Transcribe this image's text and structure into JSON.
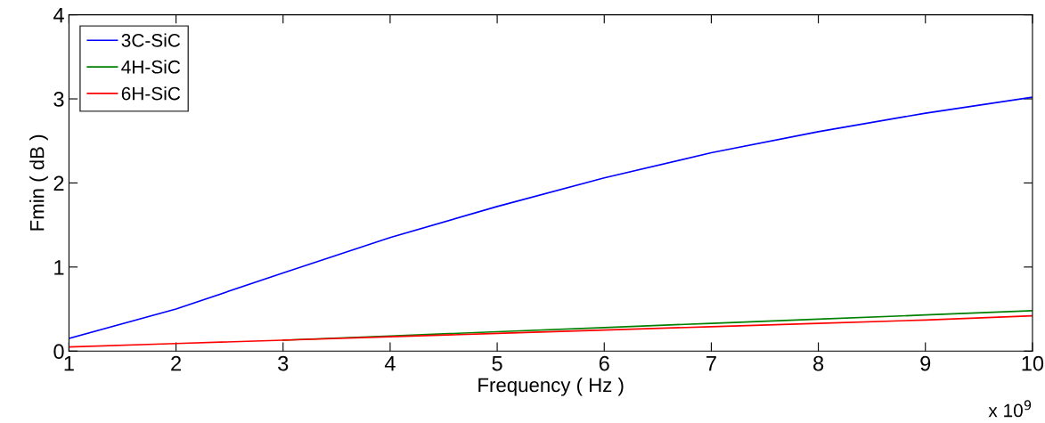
{
  "chart_data": {
    "type": "line",
    "xlabel": "Frequency ( Hz )",
    "ylabel": "Fmin ( dB )",
    "annotations": [
      "x 10$^{9}$"
    ],
    "x": [
      1,
      2,
      3,
      4,
      5,
      6,
      7,
      8,
      9,
      10
    ],
    "series": [
      {
        "name": "3C-SiC",
        "color": "#0000ff",
        "values": [
          0.15,
          0.5,
          0.93,
          1.35,
          1.72,
          2.06,
          2.36,
          2.61,
          2.83,
          3.02
        ]
      },
      {
        "name": "4H-SiC",
        "color": "#008000",
        "values": [
          null,
          null,
          0.13,
          0.18,
          0.23,
          0.28,
          0.33,
          0.38,
          0.43,
          0.48
        ]
      },
      {
        "name": "6H-SiC",
        "color": "#ff0000",
        "values": [
          0.05,
          0.09,
          0.13,
          0.17,
          0.21,
          0.25,
          0.29,
          0.33,
          0.37,
          0.42
        ]
      }
    ],
    "xlim": [
      1,
      10
    ],
    "xticks": [
      1,
      2,
      3,
      4,
      5,
      6,
      7,
      8,
      9,
      10
    ],
    "ylim": [
      0,
      4
    ],
    "yticks": [
      0,
      1,
      2,
      3,
      4
    ],
    "grid": false,
    "legend": "top left"
  }
}
